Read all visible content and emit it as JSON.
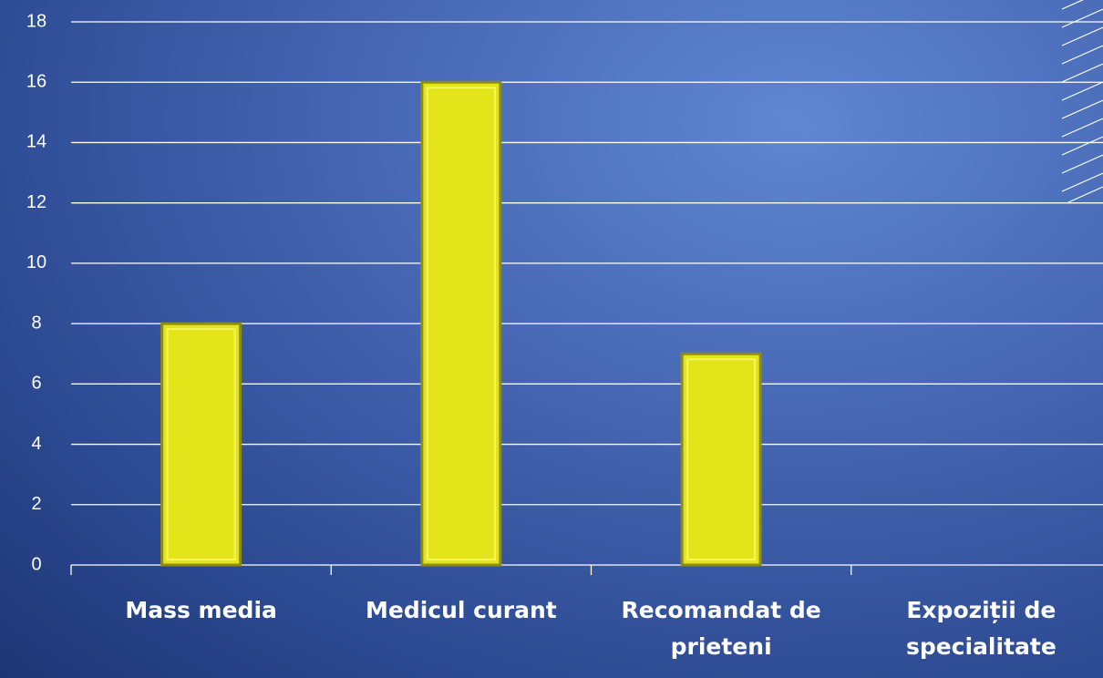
{
  "chart_data": {
    "type": "bar",
    "categories": [
      "Mass media",
      "Medicul curant",
      "Recomandat de prieteni",
      "Expoziții de specialitate"
    ],
    "values": [
      8,
      16,
      7,
      0
    ],
    "color": "#e3e41a",
    "ylim": [
      0,
      18
    ],
    "yticks": [
      0,
      2,
      4,
      6,
      8,
      10,
      12,
      14,
      16,
      18
    ],
    "grid": true
  }
}
